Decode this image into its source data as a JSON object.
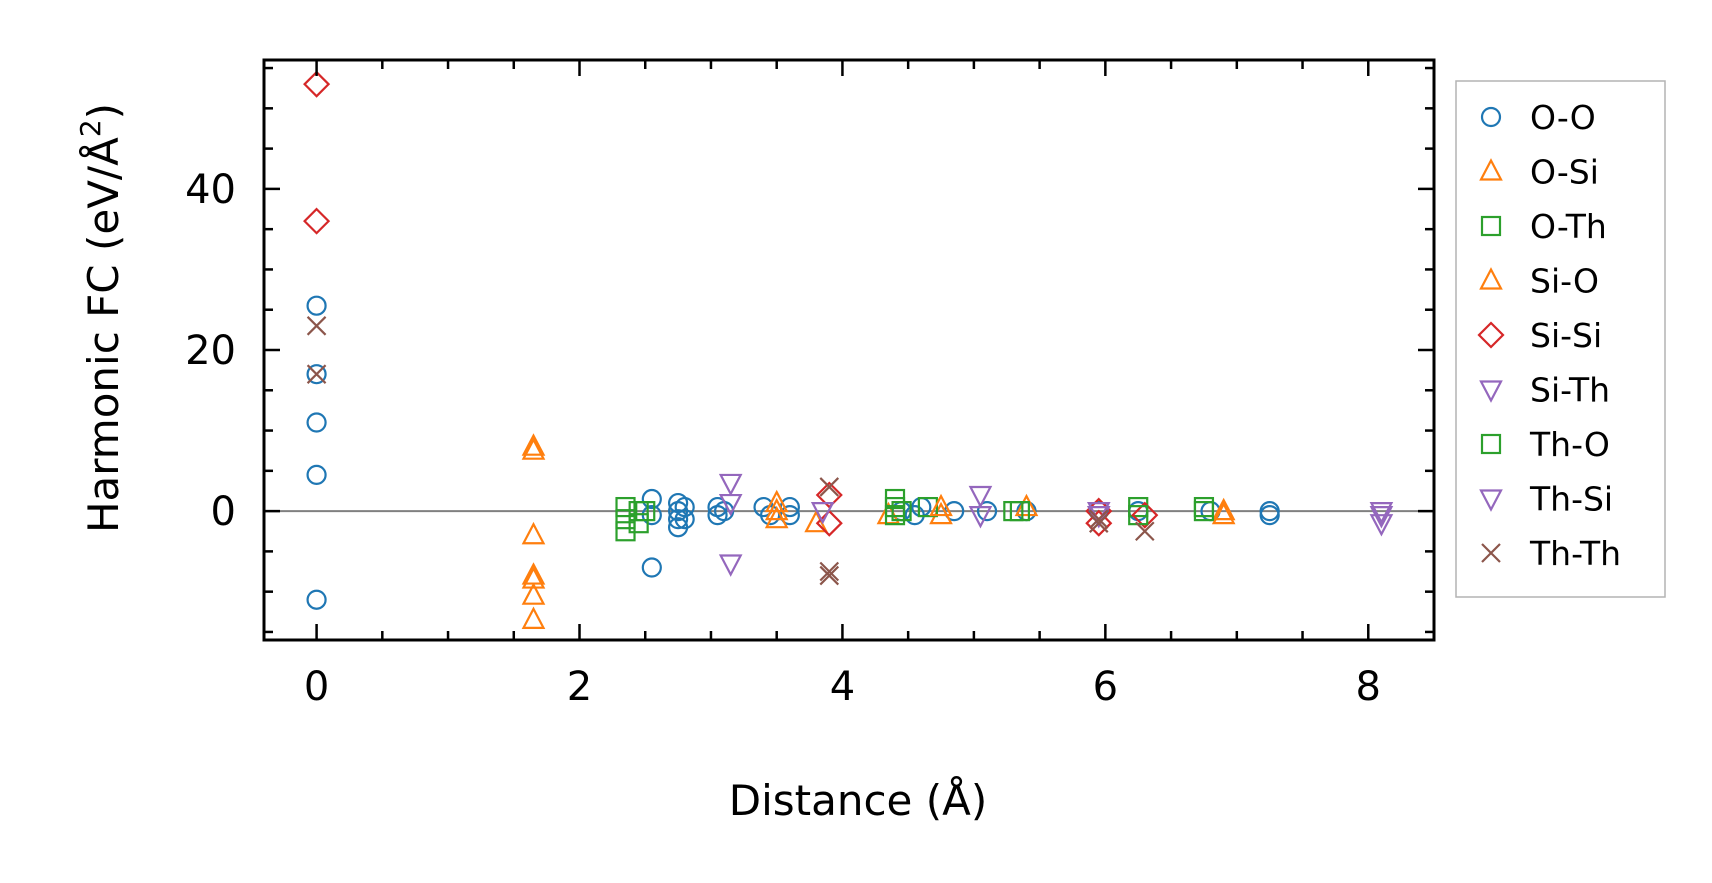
{
  "chart_data": {
    "type": "scatter",
    "title": "",
    "xlabel": "Distance (Å)",
    "ylabel": "Harmonic FC (eV/Å²)",
    "ylabel_main": "Harmonic FC (eV/Å",
    "ylabel_sup": "2",
    "ylabel_close": ")",
    "xlim": [
      -0.4,
      8.5
    ],
    "ylim": [
      -16,
      56
    ],
    "xticks": [
      0,
      2,
      4,
      6,
      8
    ],
    "yticks": [
      0,
      20,
      40
    ],
    "xtick_labels": [
      "0",
      "2",
      "4",
      "6",
      "8"
    ],
    "ytick_labels": [
      "0",
      "20",
      "40"
    ],
    "reference_line_y": 0,
    "legend_position": "outside-right",
    "series": [
      {
        "name": "O-O",
        "marker": "circle",
        "color": "#1f77b4",
        "x": [
          0,
          0,
          0,
          0,
          0,
          2.55,
          2.55,
          2.55,
          2.75,
          2.75,
          2.75,
          2.75,
          2.8,
          2.8,
          3.05,
          3.05,
          3.1,
          3.4,
          3.45,
          3.6,
          3.6,
          4.45,
          4.55,
          4.6,
          4.85,
          5.1,
          5.4,
          5.95,
          6.25,
          6.8,
          7.25,
          7.25
        ],
        "y": [
          25.5,
          17,
          11,
          4.5,
          -11,
          1.5,
          -0.5,
          -7,
          1,
          0,
          -1,
          -2,
          0.5,
          -1,
          0.5,
          -0.5,
          0,
          0.5,
          -0.5,
          0.5,
          -0.5,
          0,
          -0.5,
          0.5,
          0,
          0,
          0,
          0,
          0,
          0,
          0,
          -0.5
        ]
      },
      {
        "name": "O-Si",
        "marker": "triangle-up",
        "color": "#ff7f0e",
        "x": [
          1.65,
          1.65,
          1.65,
          1.65,
          1.65,
          1.65,
          1.65,
          3.5,
          3.5,
          3.8,
          4.35,
          4.75,
          5.4,
          6.9
        ],
        "y": [
          8,
          7.5,
          -3,
          -8,
          -8.5,
          -10.5,
          -13.5,
          1,
          -1,
          -1.5,
          -0.5,
          -0.5,
          0.5,
          0
        ]
      },
      {
        "name": "O-Th",
        "marker": "square",
        "color": "#2ca02c",
        "x": [
          2.35,
          2.35,
          2.35,
          2.45,
          2.45,
          4.4,
          4.4,
          4.45,
          4.65,
          5.3,
          6.25,
          6.75
        ],
        "y": [
          0.5,
          -1,
          -2.5,
          0,
          -1.5,
          1.5,
          -0.5,
          0,
          0.5,
          0,
          0.5,
          0
        ]
      },
      {
        "name": "Si-O",
        "marker": "triangle-up",
        "color": "#ff7f0e",
        "x": [
          3.5,
          4.75,
          6.9
        ],
        "y": [
          0,
          0.5,
          -0.5
        ]
      },
      {
        "name": "Si-Si",
        "marker": "diamond",
        "color": "#d62728",
        "x": [
          0,
          0,
          3.9,
          3.9,
          5.95,
          5.95,
          6.3
        ],
        "y": [
          53,
          36,
          2,
          -1.5,
          0,
          -1.5,
          -0.5
        ]
      },
      {
        "name": "Si-Th",
        "marker": "triangle-down",
        "color": "#9467bd",
        "x": [
          3.15,
          3.15,
          3.15,
          5.05,
          5.05,
          5.95,
          8.1,
          8.1
        ],
        "y": [
          3.5,
          1,
          -6.5,
          2,
          -0.5,
          -0.5,
          0,
          -1.5
        ]
      },
      {
        "name": "Th-O",
        "marker": "square",
        "color": "#2ca02c",
        "x": [
          2.5,
          4.4,
          5.35,
          6.25,
          6.75
        ],
        "y": [
          0,
          0.5,
          0,
          -0.5,
          0.5
        ]
      },
      {
        "name": "Th-Si",
        "marker": "triangle-down",
        "color": "#9467bd",
        "x": [
          3.85,
          5.95,
          8.1
        ],
        "y": [
          0,
          0,
          -0.5
        ]
      },
      {
        "name": "Th-Th",
        "marker": "x",
        "color": "#8c564b",
        "x": [
          0,
          0,
          3.9,
          3.9,
          3.9,
          5.95,
          5.95,
          6.3
        ],
        "y": [
          23,
          17,
          3,
          -7.5,
          -8,
          -1,
          -1.5,
          -2.5
        ]
      }
    ]
  }
}
